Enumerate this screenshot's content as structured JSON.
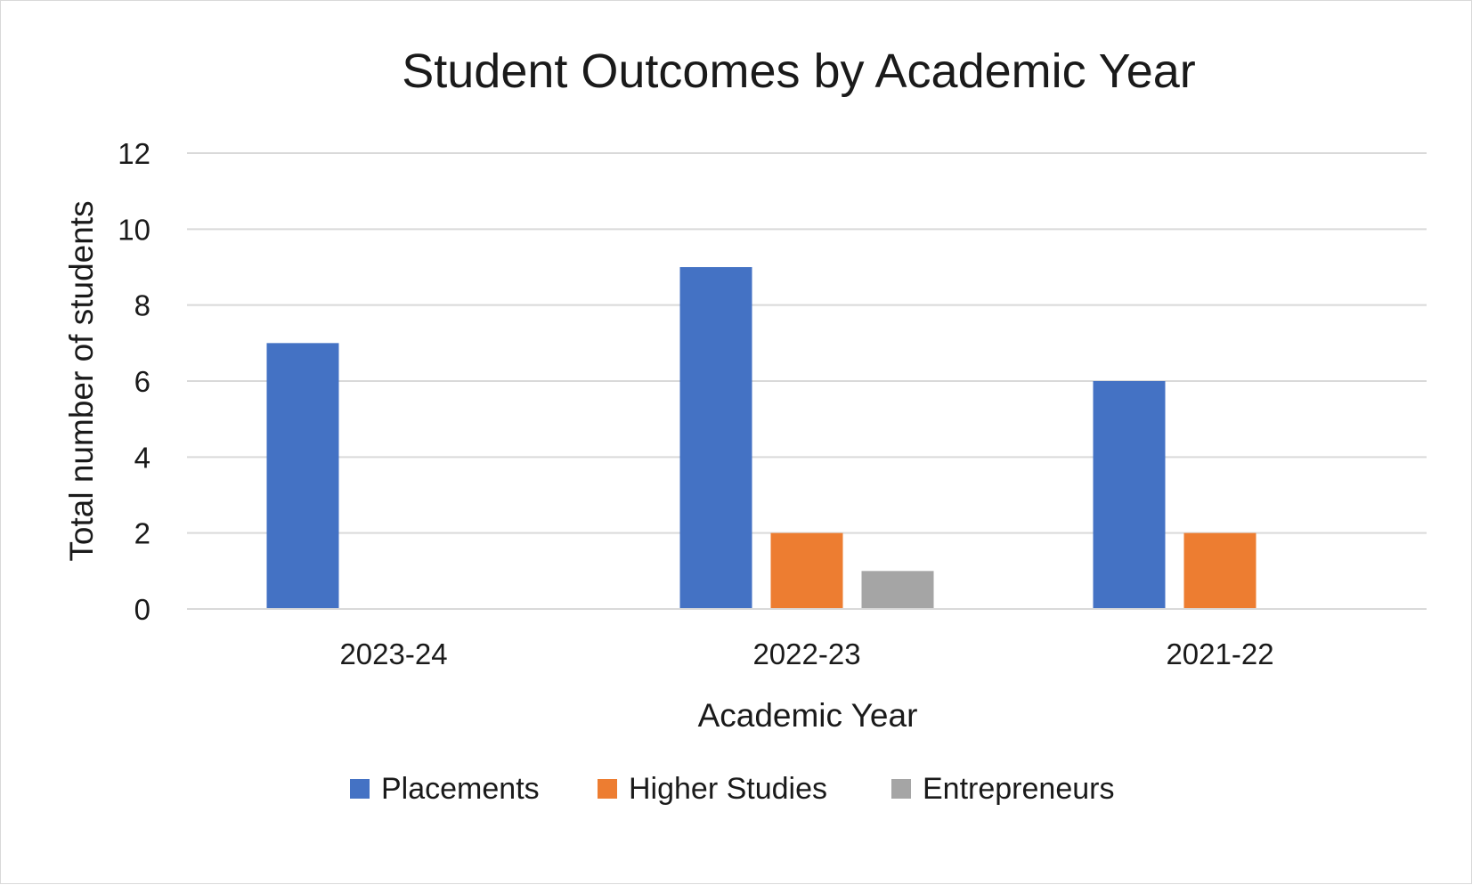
{
  "chart_data": {
    "type": "bar",
    "title": "Student Outcomes by Academic Year",
    "xlabel": "Academic Year",
    "ylabel": "Total number of students",
    "categories": [
      "2023-24",
      "2022-23",
      "2021-22"
    ],
    "series": [
      {
        "name": "Placements",
        "color": "#4472C4",
        "values": [
          7,
          9,
          6
        ]
      },
      {
        "name": "Higher Studies",
        "color": "#ED7D31",
        "values": [
          0,
          2,
          2
        ]
      },
      {
        "name": "Entrepreneurs",
        "color": "#A5A5A5",
        "values": [
          0,
          1,
          0
        ]
      }
    ],
    "ylim": [
      0,
      12
    ],
    "yticks": [
      "0",
      "2",
      "4",
      "6",
      "8",
      "10",
      "12"
    ],
    "grid": true,
    "legend_position": "bottom"
  }
}
